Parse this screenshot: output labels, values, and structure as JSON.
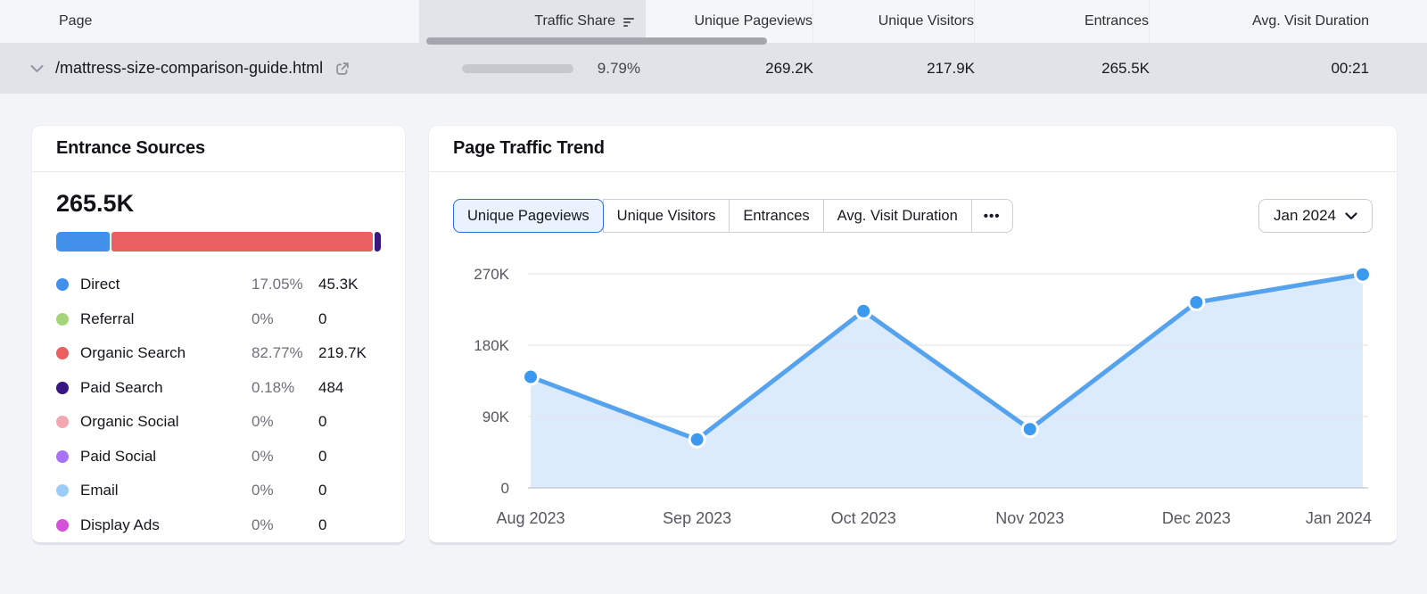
{
  "table": {
    "columns": [
      {
        "label": "Page"
      },
      {
        "label": "Traffic Share",
        "sorted": true
      },
      {
        "label": "Unique Pageviews"
      },
      {
        "label": "Unique Visitors"
      },
      {
        "label": "Entrances"
      },
      {
        "label": "Avg. Visit Duration"
      }
    ],
    "row": {
      "page": "/mattress-size-comparison-guide.html",
      "traffic_share_percent": "9.79%",
      "traffic_share_value": 9.79,
      "traffic_share_bar_color": "#4a9bf5",
      "unique_pageviews": "269.2K",
      "unique_visitors": "217.9K",
      "entrances": "265.5K",
      "avg_visit_duration": "00:21"
    }
  },
  "entrance_sources": {
    "title": "Entrance Sources",
    "total": "265.5K",
    "sources": [
      {
        "name": "Direct",
        "percent": "17.05%",
        "value": "45.3K",
        "share": 17.05,
        "color": "#4191ec"
      },
      {
        "name": "Referral",
        "percent": "0%",
        "value": "0",
        "share": 0,
        "color": "#a5d57a"
      },
      {
        "name": "Organic Search",
        "percent": "82.77%",
        "value": "219.7K",
        "share": 82.77,
        "color": "#ea5f5f"
      },
      {
        "name": "Paid Search",
        "percent": "0.18%",
        "value": "484",
        "share": 0.18,
        "color": "#381683"
      },
      {
        "name": "Organic Social",
        "percent": "0%",
        "value": "0",
        "share": 0,
        "color": "#f2a8b3"
      },
      {
        "name": "Paid Social",
        "percent": "0%",
        "value": "0",
        "share": 0,
        "color": "#a873f5"
      },
      {
        "name": "Email",
        "percent": "0%",
        "value": "0",
        "share": 0,
        "color": "#9dccf9"
      },
      {
        "name": "Display Ads",
        "percent": "0%",
        "value": "0",
        "share": 0,
        "color": "#d650da"
      }
    ]
  },
  "traffic_trend": {
    "title": "Page Traffic Trend",
    "tabs": [
      {
        "label": "Unique Pageviews",
        "selected": true
      },
      {
        "label": "Unique Visitors",
        "selected": false
      },
      {
        "label": "Entrances",
        "selected": false
      },
      {
        "label": "Avg. Visit Duration",
        "selected": false
      }
    ],
    "more_label": "•••",
    "period": "Jan 2024"
  },
  "chart_data": {
    "type": "area",
    "title": "Page Traffic Trend — Unique Pageviews",
    "x": [
      "Aug 2023",
      "Sep 2023",
      "Oct 2023",
      "Nov 2023",
      "Dec 2023",
      "Jan 2024"
    ],
    "series": [
      {
        "name": "Unique Pageviews",
        "values": [
          140000,
          61000,
          223000,
          74000,
          234000,
          269200
        ]
      }
    ],
    "yticks": [
      0,
      90000,
      180000,
      270000
    ],
    "ytick_labels": [
      "0",
      "90K",
      "180K",
      "270K"
    ],
    "ylim": [
      0,
      281000
    ],
    "grid": true,
    "legend_position": "none",
    "line_color": "#55a2ef",
    "fill_color": "#dcebfb",
    "dot_color": "#3c99f0",
    "grid_color": "#e4e6eb",
    "axis_color": "#c9cdd3",
    "tick_color": "#55585f"
  }
}
